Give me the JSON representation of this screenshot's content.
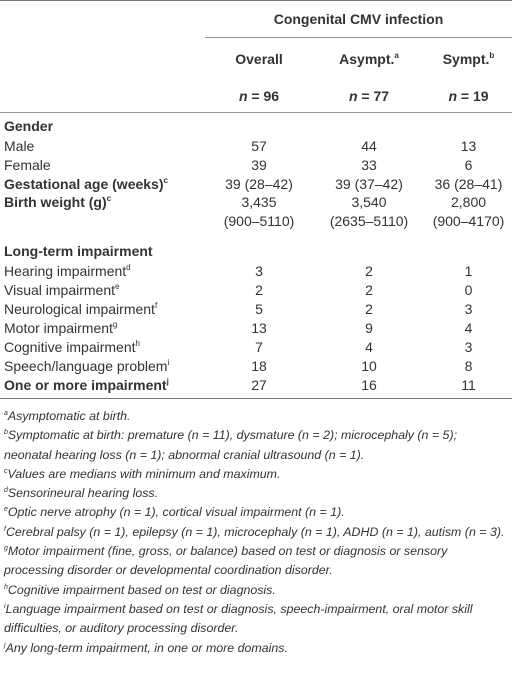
{
  "table": {
    "group_header": "Congenital CMV infection",
    "n_symbol": "n",
    "equals": "=",
    "columns": [
      {
        "label": "Overall",
        "n": 96
      },
      {
        "label": "Asympt.",
        "sup": "a",
        "n": 77
      },
      {
        "label": "Sympt.",
        "sup": "b",
        "n": 19
      }
    ],
    "rows": [
      {
        "label": "Gender",
        "section": true
      },
      {
        "label": "Male",
        "values": [
          57,
          44,
          13
        ]
      },
      {
        "label": "Female",
        "values": [
          39,
          33,
          6
        ]
      },
      {
        "label": "Gestational age (weeks)",
        "sup": "c",
        "bold": true,
        "values": [
          "39 (28–42)",
          "39 (37–42)",
          "36 (28–41)"
        ]
      },
      {
        "label": "Birth weight (g)",
        "sup": "c",
        "bold": true,
        "values": [
          "3,435",
          "3,540",
          "2,800"
        ],
        "ranges": [
          "(900–5110)",
          "(2635–5110)",
          "(900–4170)"
        ]
      },
      {
        "label": "Long-term impairment",
        "section": true
      },
      {
        "label": "Hearing impairment",
        "sup": "d",
        "values": [
          3,
          2,
          1
        ]
      },
      {
        "label": "Visual impairment",
        "sup": "e",
        "values": [
          2,
          2,
          0
        ]
      },
      {
        "label": "Neurological impairment",
        "sup": "f",
        "values": [
          5,
          2,
          3
        ]
      },
      {
        "label": "Motor impairment",
        "sup": "g",
        "values": [
          13,
          9,
          4
        ]
      },
      {
        "label": "Cognitive impairment",
        "sup": "h",
        "values": [
          7,
          4,
          3
        ]
      },
      {
        "label": "Speech/language problem",
        "sup": "i",
        "values": [
          18,
          10,
          8
        ]
      },
      {
        "label": "One or more impairment",
        "sup": "j",
        "bold": true,
        "values": [
          27,
          16,
          11
        ]
      }
    ]
  },
  "footnotes": [
    {
      "mark": "a",
      "text": "Asymptomatic at birth."
    },
    {
      "mark": "b",
      "text": "Symptomatic at birth: premature (n = 11), dysmature (n = 2); microcephaly (n = 5); neonatal hearing loss (n = 1); abnormal cranial ultrasound (n = 1)."
    },
    {
      "mark": "c",
      "text": "Values are medians with minimum and maximum."
    },
    {
      "mark": "d",
      "text": "Sensorineural hearing loss."
    },
    {
      "mark": "e",
      "text": "Optic nerve atrophy (n = 1), cortical visual impairment (n = 1)."
    },
    {
      "mark": "f",
      "text": "Cerebral palsy (n = 1), epilepsy (n = 1), microcephaly (n = 1), ADHD (n = 1), autism (n = 3)."
    },
    {
      "mark": "g",
      "text": "Motor impairment (fine, gross, or balance) based on test or diagnosis or sensory processing disorder or developmental coordination disorder."
    },
    {
      "mark": "h",
      "text": "Cognitive impairment based on test or diagnosis."
    },
    {
      "mark": "i",
      "text": "Language impairment based on test or diagnosis, speech-impairment, oral motor skill difficulties, or auditory processing disorder."
    },
    {
      "mark": "j",
      "text": "Any long-term impairment, in one or more domains."
    }
  ]
}
